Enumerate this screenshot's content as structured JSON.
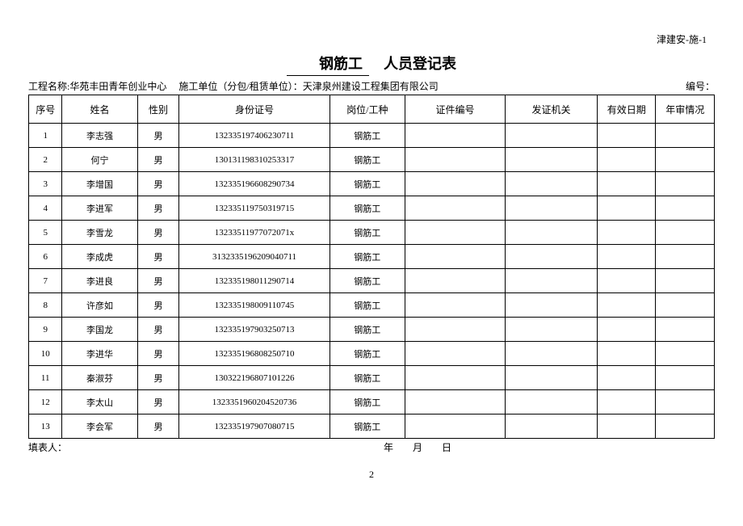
{
  "top_right_code": "津建安-施-1",
  "title_prefix_underline": "钢筋工",
  "title_suffix": "　人员登记表",
  "project_label": "工程名称:",
  "project_name": "华苑丰田青年创业中心",
  "contractor_label": "施工单位（分包/租赁单位）：",
  "contractor_name": "天津泉州建设工程集团有限公司",
  "serial_label": "编号：",
  "columns": {
    "seq": "序号",
    "name": "姓名",
    "gender": "性别",
    "id": "身份证号",
    "job": "岗位/工种",
    "cert": "证件编号",
    "issuer": "发证机关",
    "valid": "有效日期",
    "review": "年审情况"
  },
  "rows": [
    {
      "seq": "1",
      "name": "李志强",
      "gender": "男",
      "id": "132335197406230711",
      "job": "钢筋工",
      "cert": "",
      "issuer": "",
      "valid": "",
      "review": ""
    },
    {
      "seq": "2",
      "name": "何宁",
      "gender": "男",
      "id": "130131198310253317",
      "job": "钢筋工",
      "cert": "",
      "issuer": "",
      "valid": "",
      "review": ""
    },
    {
      "seq": "3",
      "name": "李增国",
      "gender": "男",
      "id": "132335196608290734",
      "job": "钢筋工",
      "cert": "",
      "issuer": "",
      "valid": "",
      "review": ""
    },
    {
      "seq": "4",
      "name": "李进军",
      "gender": "男",
      "id": "132335119750319715",
      "job": "钢筋工",
      "cert": "",
      "issuer": "",
      "valid": "",
      "review": ""
    },
    {
      "seq": "5",
      "name": "李雪龙",
      "gender": "男",
      "id": "13233511977072071x",
      "job": "钢筋工",
      "cert": "",
      "issuer": "",
      "valid": "",
      "review": ""
    },
    {
      "seq": "6",
      "name": "李成虎",
      "gender": "男",
      "id": "3132335196209040711",
      "job": "钢筋工",
      "cert": "",
      "issuer": "",
      "valid": "",
      "review": ""
    },
    {
      "seq": "7",
      "name": "李进良",
      "gender": "男",
      "id": "132335198011290714",
      "job": "钢筋工",
      "cert": "",
      "issuer": "",
      "valid": "",
      "review": ""
    },
    {
      "seq": "8",
      "name": "许彦如",
      "gender": "男",
      "id": "132335198009110745",
      "job": "钢筋工",
      "cert": "",
      "issuer": "",
      "valid": "",
      "review": ""
    },
    {
      "seq": "9",
      "name": "李国龙",
      "gender": "男",
      "id": "132335197903250713",
      "job": "钢筋工",
      "cert": "",
      "issuer": "",
      "valid": "",
      "review": ""
    },
    {
      "seq": "10",
      "name": "李进华",
      "gender": "男",
      "id": "132335196808250710",
      "job": "钢筋工",
      "cert": "",
      "issuer": "",
      "valid": "",
      "review": ""
    },
    {
      "seq": "11",
      "name": "秦淑芬",
      "gender": "男",
      "id": "130322196807101226",
      "job": "钢筋工",
      "cert": "",
      "issuer": "",
      "valid": "",
      "review": ""
    },
    {
      "seq": "12",
      "name": "李太山",
      "gender": "男",
      "id": "1323351960204520736",
      "job": "钢筋工",
      "cert": "",
      "issuer": "",
      "valid": "",
      "review": ""
    },
    {
      "seq": "13",
      "name": "李会军",
      "gender": "男",
      "id": "132335197907080715",
      "job": "钢筋工",
      "cert": "",
      "issuer": "",
      "valid": "",
      "review": ""
    }
  ],
  "filler_label": "填表人：",
  "date_label": "年　　月　　日",
  "page_number": "2"
}
